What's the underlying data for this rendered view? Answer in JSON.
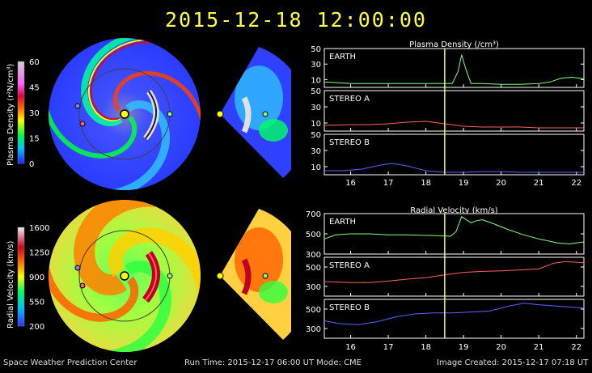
{
  "title": "2015-12-18  12:00:00",
  "footer": {
    "left": "Space Weather Prediction Center",
    "center": "Run Time: 2015-12-17 06:00 UT   Mode: CME",
    "right": "Image Created: 2015-12-17 07:18 UT"
  },
  "colors": {
    "earth_line": "#80ff80",
    "stereo_a_line": "#ff6060",
    "stereo_b_line": "#6060ff",
    "current_time": "#ffff40",
    "panel_bg": "#000000",
    "axis": "#ffffff"
  },
  "colorbars": [
    {
      "label": "Plasma Density (r²N/cm³)",
      "ticks": [
        "60",
        "45",
        "30",
        "15",
        "0"
      ]
    },
    {
      "label": "Radial Velocity (km/s)",
      "ticks": [
        "1600",
        "1250",
        "900",
        "550",
        "200"
      ]
    }
  ],
  "chart_data": [
    {
      "type": "line",
      "title": "Plasma Density (/cm³)",
      "x_ticks": [
        "16",
        "17",
        "18",
        "19",
        "20",
        "21",
        "22"
      ],
      "xlim": [
        15.3,
        22.2
      ],
      "current_time": 18.5,
      "panels": [
        {
          "name": "EARTH",
          "ylim": [
            0,
            50
          ],
          "y_ticks": [
            "50",
            "30",
            "10"
          ],
          "color": "#80ff80",
          "x": [
            15.3,
            16,
            17,
            18,
            18.7,
            18.85,
            18.95,
            19.05,
            19.2,
            19.5,
            20,
            20.5,
            21,
            21.3,
            21.6,
            21.9,
            22.2
          ],
          "y": [
            7,
            5,
            5,
            5,
            5,
            20,
            42,
            25,
            5,
            5,
            4,
            4,
            5,
            7,
            12,
            13,
            11
          ]
        },
        {
          "name": "STEREO A",
          "ylim": [
            0,
            50
          ],
          "y_ticks": [
            "50",
            "30",
            "10"
          ],
          "color": "#ff6060",
          "x": [
            15.3,
            16,
            16.5,
            17,
            17.5,
            18,
            18.5,
            19,
            19.5,
            20,
            20.5,
            21,
            21.5,
            22.2
          ],
          "y": [
            7,
            8,
            8,
            9,
            11,
            12,
            9,
            6,
            5,
            5,
            5,
            4,
            4,
            4
          ]
        },
        {
          "name": "STEREO B",
          "ylim": [
            0,
            50
          ],
          "y_ticks": [
            "50",
            "30",
            "10"
          ],
          "color": "#6060ff",
          "x": [
            15.3,
            15.8,
            16.3,
            16.8,
            17.1,
            17.5,
            18,
            18.5,
            19,
            19.5,
            20,
            20.5,
            21,
            21.5,
            22.2
          ],
          "y": [
            5,
            5,
            7,
            12,
            14,
            11,
            5,
            3,
            3,
            4,
            4,
            3,
            3,
            3,
            3
          ]
        }
      ]
    },
    {
      "type": "line",
      "title": "Radial Velocity (km/s)",
      "x_ticks": [
        "16",
        "17",
        "18",
        "19",
        "20",
        "21",
        "22"
      ],
      "xlim": [
        15.3,
        22.2
      ],
      "current_time": 18.5,
      "panels": [
        {
          "name": "EARTH",
          "ylim": [
            300,
            700
          ],
          "y_ticks": [
            "700",
            "500",
            "300"
          ],
          "color": "#80ff80",
          "x": [
            15.3,
            15.6,
            16,
            16.5,
            17,
            17.5,
            18,
            18.5,
            18.65,
            18.8,
            18.95,
            19.2,
            19.35,
            19.5,
            19.8,
            20.2,
            20.6,
            21,
            21.5,
            21.8,
            22.2
          ],
          "y": [
            450,
            490,
            500,
            500,
            490,
            490,
            485,
            480,
            475,
            520,
            670,
            610,
            630,
            640,
            600,
            540,
            490,
            450,
            410,
            400,
            420
          ]
        },
        {
          "name": "STEREO A",
          "ylim": [
            200,
            600
          ],
          "y_ticks": [
            "500",
            "300"
          ],
          "color": "#ff6060",
          "x": [
            15.3,
            16,
            16.5,
            17,
            17.5,
            18,
            18.5,
            19,
            19.5,
            20,
            20.5,
            21,
            21.4,
            21.7,
            22.2
          ],
          "y": [
            350,
            340,
            340,
            355,
            375,
            390,
            420,
            445,
            455,
            460,
            470,
            480,
            540,
            555,
            545
          ]
        },
        {
          "name": "STEREO B",
          "ylim": [
            200,
            600
          ],
          "y_ticks": [
            "500",
            "300"
          ],
          "color": "#6060ff",
          "x": [
            15.3,
            15.7,
            16.2,
            16.7,
            17.2,
            17.7,
            18.2,
            18.7,
            19.2,
            19.7,
            20.2,
            20.6,
            21,
            21.5,
            22.2
          ],
          "y": [
            380,
            350,
            340,
            370,
            420,
            450,
            460,
            460,
            470,
            480,
            530,
            560,
            545,
            530,
            510
          ]
        }
      ]
    }
  ]
}
